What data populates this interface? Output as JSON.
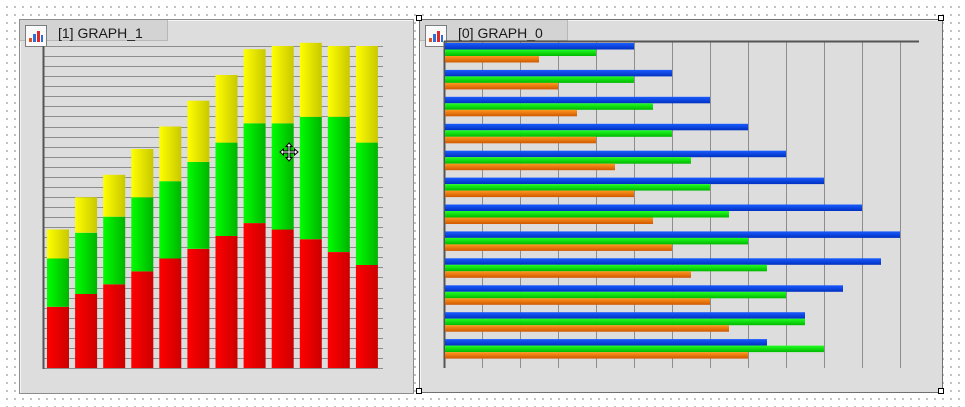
{
  "graphs": [
    {
      "id": "graph_1",
      "title": "[1] GRAPH_1",
      "icon": "bar-chart-icon",
      "selected": false
    },
    {
      "id": "graph_0",
      "title": "[0] GRAPH_0",
      "icon": "bar-chart-icon",
      "selected": true
    }
  ],
  "cursor": "move-cursor-icon",
  "chart_data": [
    {
      "type": "bar",
      "orientation": "vertical",
      "stacked": true,
      "grid": true,
      "legend": "none",
      "ylim": [
        0,
        100
      ],
      "colors": [
        "#e80000",
        "#00cc00",
        "#e6e600"
      ],
      "series": [
        {
          "values": [
            19,
            23,
            26,
            30,
            34,
            37,
            41,
            45,
            43,
            40,
            36,
            32
          ]
        },
        {
          "values": [
            15,
            19,
            21,
            23,
            24,
            27,
            29,
            31,
            33,
            38,
            42,
            38
          ]
        },
        {
          "values": [
            9,
            11,
            13,
            15,
            17,
            19,
            21,
            23,
            24,
            23,
            22,
            30
          ]
        }
      ]
    },
    {
      "type": "bar",
      "orientation": "horizontal",
      "stacked": false,
      "grid": true,
      "legend": "none",
      "xlim": [
        0,
        100
      ],
      "colors": [
        "#0044e0",
        "#00d000",
        "#e87800"
      ],
      "series": [
        {
          "values": [
            40,
            48,
            56,
            64,
            72,
            80,
            88,
            96,
            92,
            84,
            76,
            68
          ]
        },
        {
          "values": [
            32,
            40,
            44,
            48,
            52,
            56,
            60,
            64,
            68,
            72,
            76,
            80
          ]
        },
        {
          "values": [
            20,
            24,
            28,
            32,
            36,
            40,
            44,
            48,
            52,
            56,
            60,
            64
          ]
        }
      ]
    }
  ]
}
